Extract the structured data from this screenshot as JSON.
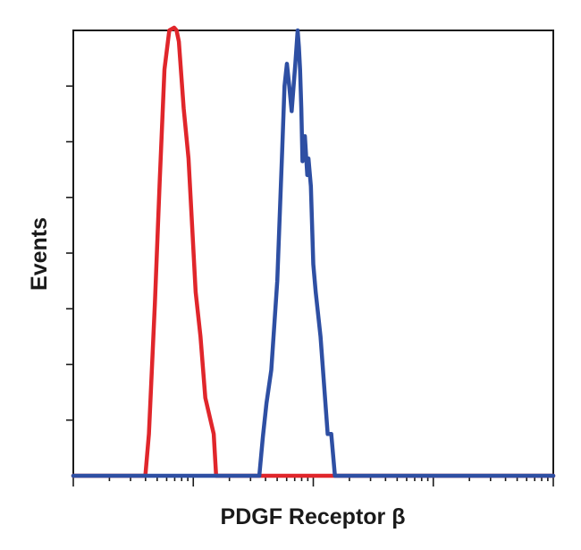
{
  "chart_data": {
    "type": "line",
    "title": "",
    "xlabel": "PDGF Receptor β",
    "ylabel": "Events",
    "xscale": "log",
    "x_decades": 4,
    "xlim": [
      0,
      4
    ],
    "ylim": [
      0,
      8
    ],
    "y_ticks": [
      0,
      1,
      2,
      3,
      4,
      5,
      6,
      7,
      8
    ],
    "grid": false,
    "legend": "none",
    "series": [
      {
        "color": "#e0262b",
        "x": [
          0,
          0.6,
          0.63,
          0.68,
          0.72,
          0.76,
          0.8,
          0.84,
          0.86,
          0.88,
          0.9,
          0.92,
          0.96,
          1.02,
          1.06,
          1.1,
          1.17,
          1.19,
          4
        ],
        "y": [
          0,
          0,
          0.75,
          3.1,
          5.3,
          7.3,
          8.0,
          8.05,
          8.0,
          7.8,
          7.2,
          6.6,
          5.7,
          3.3,
          2.5,
          1.4,
          0.75,
          0,
          0
        ]
      },
      {
        "color": "#2e4fa3",
        "x": [
          0,
          1.55,
          1.58,
          1.61,
          1.65,
          1.7,
          1.74,
          1.76,
          1.78,
          1.8,
          1.82,
          1.85,
          1.87,
          1.88,
          1.89,
          1.9,
          1.91,
          1.93,
          1.95,
          1.96,
          1.98,
          2.0,
          2.02,
          2.06,
          2.12,
          2.15,
          2.18,
          4
        ],
        "y": [
          0,
          0,
          0.7,
          1.3,
          1.9,
          3.5,
          5.8,
          7.0,
          7.4,
          7.0,
          6.55,
          7.4,
          8.0,
          7.7,
          7.3,
          6.6,
          5.65,
          6.1,
          5.4,
          5.7,
          5.2,
          3.8,
          3.3,
          2.5,
          0.75,
          0.75,
          0,
          0
        ]
      }
    ]
  }
}
